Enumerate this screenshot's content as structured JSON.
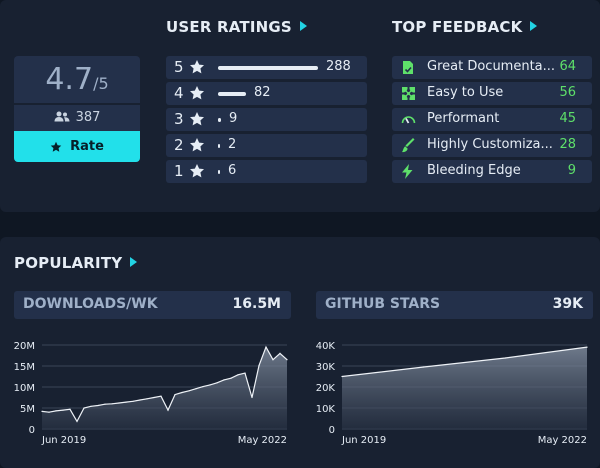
{
  "ratings": {
    "title": "USER RATINGS",
    "average": "4.7",
    "average_denominator": "/5",
    "user_count": "387",
    "rate_label": "Rate",
    "rows": [
      {
        "stars": "5",
        "count": 288
      },
      {
        "stars": "4",
        "count": 82
      },
      {
        "stars": "3",
        "count": 9
      },
      {
        "stars": "2",
        "count": 2
      },
      {
        "stars": "1",
        "count": 6
      }
    ]
  },
  "feedback": {
    "title": "TOP FEEDBACK",
    "items": [
      {
        "label": "Great Documenta...",
        "count": "64",
        "icon": "document-check-icon"
      },
      {
        "label": "Easy to Use",
        "count": "56",
        "icon": "puzzle-icon"
      },
      {
        "label": "Performant",
        "count": "45",
        "icon": "speedometer-icon"
      },
      {
        "label": "Highly Customiza...",
        "count": "28",
        "icon": "paintbrush-icon"
      },
      {
        "label": "Bleeding Edge",
        "count": "9",
        "icon": "lightning-icon"
      }
    ]
  },
  "popularity": {
    "title": "POPULARITY",
    "downloads": {
      "label": "DOWNLOADS/WK",
      "value": "16.5M"
    },
    "stars": {
      "label": "GITHUB STARS",
      "value": "39K"
    }
  },
  "colors": {
    "accent": "#22d3e4",
    "positive": "#5ee06a",
    "panel": "#182131",
    "row": "#23304a"
  },
  "chart_data": [
    {
      "type": "area",
      "title": "DOWNLOADS/WK",
      "y_ticks": [
        "20M",
        "15M",
        "10M",
        "5M",
        "0"
      ],
      "ylim": [
        0,
        20000000
      ],
      "x_tick_labels": [
        "Jun 2019",
        "May 2022"
      ],
      "x": [
        "2019-06",
        "2019-07",
        "2019-08",
        "2019-09",
        "2019-10",
        "2019-11",
        "2019-12",
        "2020-01",
        "2020-02",
        "2020-03",
        "2020-04",
        "2020-05",
        "2020-06",
        "2020-07",
        "2020-08",
        "2020-09",
        "2020-10",
        "2020-11",
        "2020-12",
        "2021-01",
        "2021-02",
        "2021-03",
        "2021-04",
        "2021-05",
        "2021-06",
        "2021-07",
        "2021-08",
        "2021-09",
        "2021-10",
        "2021-11",
        "2021-12",
        "2022-01",
        "2022-02",
        "2022-03",
        "2022-04",
        "2022-05"
      ],
      "values": [
        4200000,
        4000000,
        4300000,
        4500000,
        4700000,
        1800000,
        5000000,
        5400000,
        5600000,
        5900000,
        6000000,
        6200000,
        6400000,
        6600000,
        6900000,
        7200000,
        7500000,
        7800000,
        4500000,
        8200000,
        8700000,
        9100000,
        9600000,
        10100000,
        10500000,
        11000000,
        11700000,
        12100000,
        12900000,
        13300000,
        7500000,
        15100000,
        19500000,
        16500000,
        18000000,
        16500000
      ]
    },
    {
      "type": "area",
      "title": "GITHUB STARS",
      "y_ticks": [
        "40K",
        "30K",
        "20K",
        "10K",
        "0"
      ],
      "ylim": [
        0,
        40000
      ],
      "x_tick_labels": [
        "Jun 2019",
        "May 2022"
      ],
      "x": [
        "2019-06",
        "2020-06",
        "2021-06",
        "2022-05"
      ],
      "values": [
        25000,
        29500,
        33800,
        39000
      ]
    }
  ]
}
